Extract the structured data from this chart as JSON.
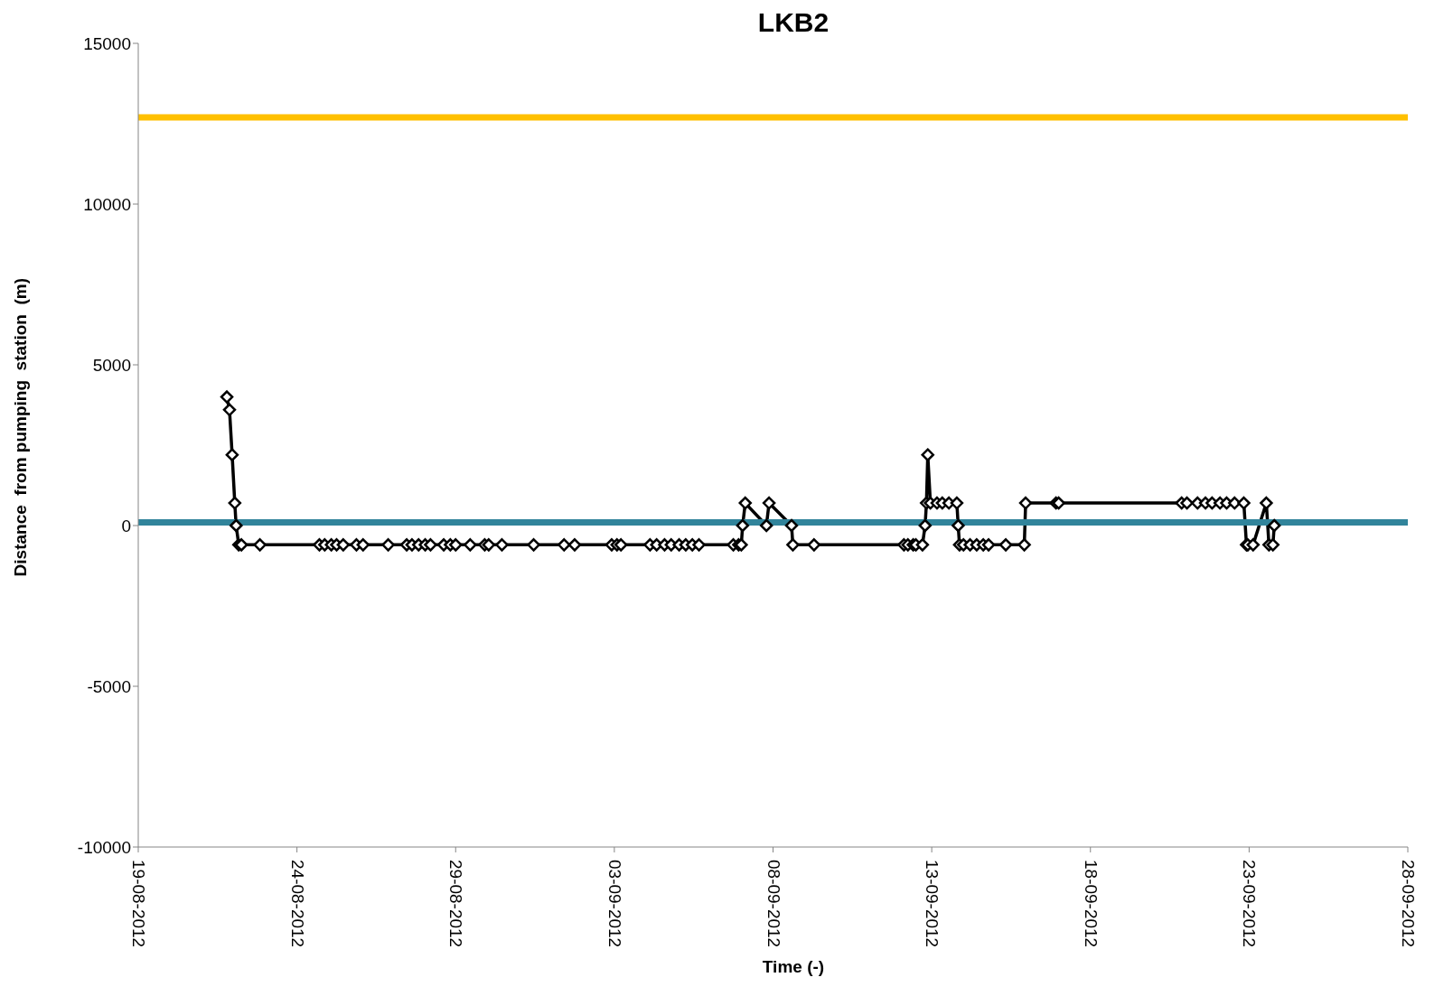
{
  "chart_data": {
    "type": "line",
    "title": "LKB2",
    "xlabel": "Time (-)",
    "ylabel": "Distance  from pumping  station  (m)",
    "x": [
      "2012-08-21T19:00",
      "2012-08-21T21:00",
      "2012-08-21T23:00",
      "2012-08-22T01:00",
      "2012-08-22T02:00",
      "2012-08-22T04:00",
      "2012-08-22T06:00",
      "2012-08-22T20:00",
      "2012-08-24T17:00",
      "2012-08-24T21:00",
      "2012-08-25T02:00",
      "2012-08-25T06:00",
      "2012-08-25T11:00",
      "2012-08-25T21:00",
      "2012-08-26T02:00",
      "2012-08-26T21:00",
      "2012-08-27T11:00",
      "2012-08-27T15:00",
      "2012-08-27T20:00",
      "2012-08-28T01:00",
      "2012-08-28T05:00",
      "2012-08-28T15:00",
      "2012-08-28T20:00",
      "2012-08-29T00:00",
      "2012-08-29T11:00",
      "2012-08-29T22:00",
      "2012-08-30T01:00",
      "2012-08-30T11:00",
      "2012-08-31T11:00",
      "2012-09-01T10:00",
      "2012-09-01T18:00",
      "2012-09-02T22:00",
      "2012-09-03T02:00",
      "2012-09-03T05:00",
      "2012-09-04T03:00",
      "2012-09-04T08:00",
      "2012-09-04T14:00",
      "2012-09-04T19:00",
      "2012-09-05T01:00",
      "2012-09-05T06:00",
      "2012-09-05T11:00",
      "2012-09-05T16:00",
      "2012-09-06T18:00",
      "2012-09-06T22:00",
      "2012-09-07T00:00",
      "2012-09-07T01:00",
      "2012-09-07T03:00",
      "2012-09-07T19:00",
      "2012-09-07T21:00",
      "2012-09-08T14:00",
      "2012-09-08T15:00",
      "2012-09-09T07:00",
      "2012-09-12T03:00",
      "2012-09-12T06:00",
      "2012-09-12T10:00",
      "2012-09-12T12:00",
      "2012-09-12T17:00",
      "2012-09-12T19:00",
      "2012-09-12T20:00",
      "2012-09-12T21:00",
      "2012-09-12T23:00",
      "2012-09-13T04:00",
      "2012-09-13T08:00",
      "2012-09-13T13:00",
      "2012-09-13T19:00",
      "2012-09-13T20:00",
      "2012-09-13T21:00",
      "2012-09-14T00:00",
      "2012-09-14T05:00",
      "2012-09-14T10:00",
      "2012-09-14T15:00",
      "2012-09-14T19:00",
      "2012-09-15T08:00",
      "2012-09-15T22:00",
      "2012-09-15T23:00",
      "2012-09-16T22:00",
      "2012-09-17T00:00",
      "2012-09-20T21:00",
      "2012-09-21T01:00",
      "2012-09-21T09:00",
      "2012-09-21T15:00",
      "2012-09-21T20:00",
      "2012-09-22T02:00",
      "2012-09-22T07:00",
      "2012-09-22T13:00",
      "2012-09-22T20:00",
      "2012-09-22T22:00",
      "2012-09-22T23:00",
      "2012-09-23T03:00",
      "2012-09-23T13:00",
      "2012-09-23T15:00",
      "2012-09-23T18:00",
      "2012-09-23T19:00"
    ],
    "series": [
      {
        "color": "#000000",
        "values": [
          4000,
          3600,
          2200,
          700,
          0,
          -600,
          -600,
          -600,
          -600,
          -600,
          -600,
          -600,
          -600,
          -600,
          -600,
          -600,
          -600,
          -600,
          -600,
          -600,
          -600,
          -600,
          -600,
          -600,
          -600,
          -600,
          -600,
          -600,
          -600,
          -600,
          -600,
          -600,
          -600,
          -600,
          -600,
          -600,
          -600,
          -600,
          -600,
          -600,
          -600,
          -600,
          -600,
          -600,
          -600,
          0,
          700,
          0,
          700,
          0,
          -600,
          -600,
          -600,
          -600,
          -600,
          -600,
          -600,
          0,
          700,
          2200,
          700,
          700,
          700,
          700,
          700,
          0,
          -600,
          -600,
          -600,
          -600,
          -600,
          -600,
          -600,
          -600,
          700,
          700,
          700,
          700,
          700,
          700,
          700,
          700,
          700,
          700,
          700,
          700,
          -600,
          -600,
          -600,
          700,
          -600,
          -600,
          0
        ]
      }
    ],
    "marker": "diamond",
    "line_style": "solid",
    "xlim": [
      "2012-08-19",
      "2012-09-28"
    ],
    "xticks": [
      {
        "value": "2012-08-19",
        "label": "19-08-2012"
      },
      {
        "value": "2012-08-24",
        "label": "24-08-2012"
      },
      {
        "value": "2012-08-29",
        "label": "29-08-2012"
      },
      {
        "value": "2012-09-03",
        "label": "03-09-2012"
      },
      {
        "value": "2012-09-08",
        "label": "08-09-2012"
      },
      {
        "value": "2012-09-13",
        "label": "13-09-2012"
      },
      {
        "value": "2012-09-18",
        "label": "18-09-2012"
      },
      {
        "value": "2012-09-23",
        "label": "23-09-2012"
      },
      {
        "value": "2012-09-28",
        "label": "28-09-2012"
      }
    ],
    "ylim": [
      -10000,
      15000
    ],
    "yticks": [
      -10000,
      -5000,
      0,
      5000,
      10000,
      15000
    ],
    "ref_lines": [
      {
        "axis": "y",
        "value": 12700,
        "color": "#ffc000"
      },
      {
        "axis": "y",
        "value": 100,
        "color": "#31849b"
      }
    ]
  }
}
